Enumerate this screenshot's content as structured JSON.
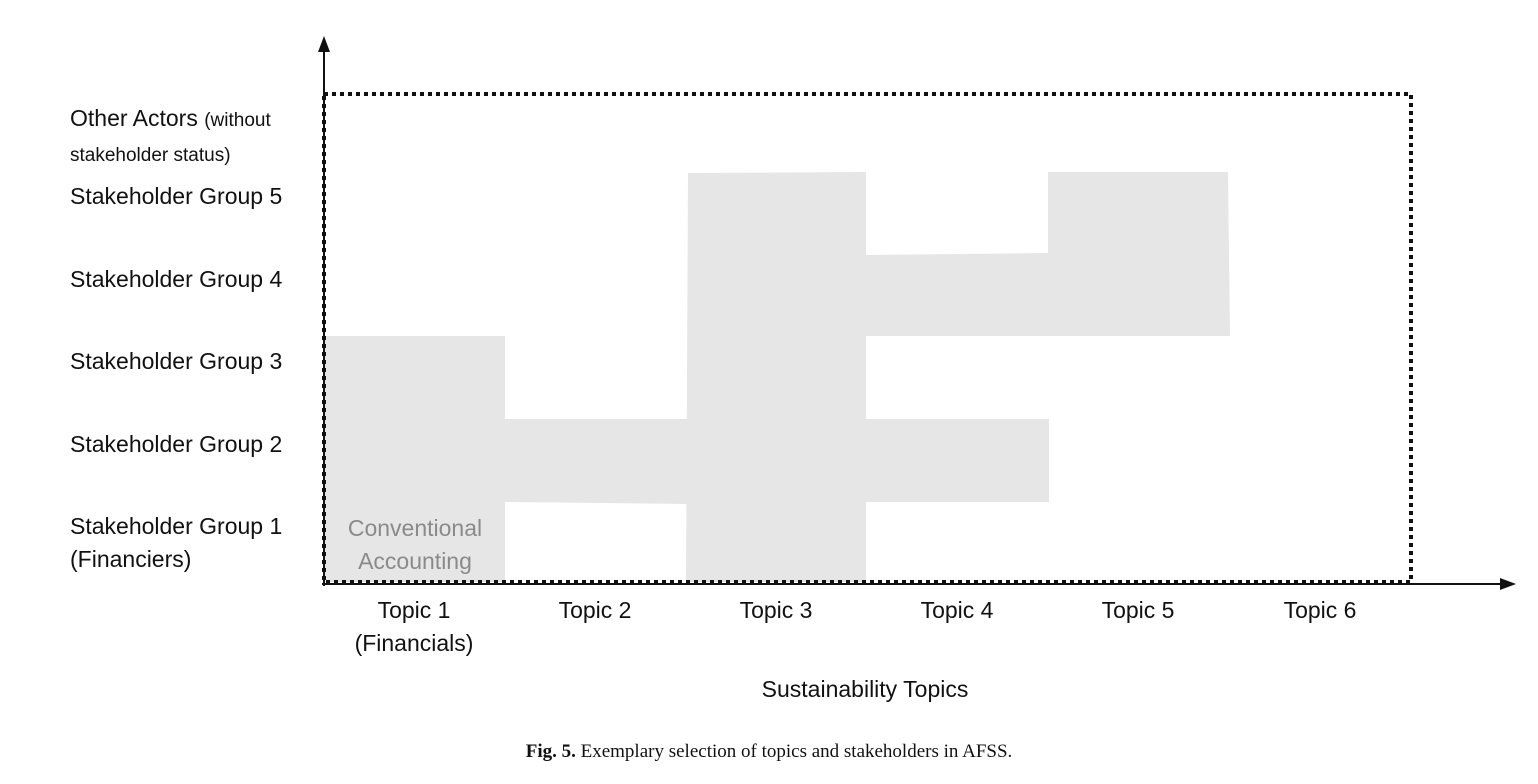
{
  "diagram": {
    "y_labels": [
      {
        "main": "Other Actors",
        "suffix": "(without",
        "line2": "stakeholder status)"
      },
      {
        "main": "Stakeholder Group 5"
      },
      {
        "main": "Stakeholder Group 4"
      },
      {
        "main": "Stakeholder Group 3"
      },
      {
        "main": "Stakeholder Group 2"
      },
      {
        "main": "Stakeholder Group 1",
        "line2": "(Financiers)"
      }
    ],
    "x_labels": [
      {
        "line1": "Topic 1",
        "line2": "(Financials)"
      },
      {
        "line1": "Topic 2"
      },
      {
        "line1": "Topic 3"
      },
      {
        "line1": "Topic 4"
      },
      {
        "line1": "Topic 5"
      },
      {
        "line1": "Topic 6"
      }
    ],
    "x_axis_title": "Sustainability Topics",
    "inner_label": {
      "line1": "Conventional",
      "line2": "Accounting"
    },
    "selection": [
      {
        "topic": "Topic 1",
        "groups_up_to": 3
      },
      {
        "topic": "Topic 2",
        "groups": [
          2
        ]
      },
      {
        "topic": "Topic 3",
        "groups_up_to": 5
      },
      {
        "topic": "Topic 4",
        "groups": [
          2,
          4
        ]
      },
      {
        "topic": "Topic 5",
        "groups": [
          4,
          5
        ]
      },
      {
        "topic": "Topic 6",
        "groups": []
      }
    ],
    "fill_color": "#e6e6e6",
    "axis_color": "#111111"
  },
  "caption": {
    "label": "Fig. 5.",
    "text": " Exemplary selection of topics and stakeholders in AFSS."
  }
}
